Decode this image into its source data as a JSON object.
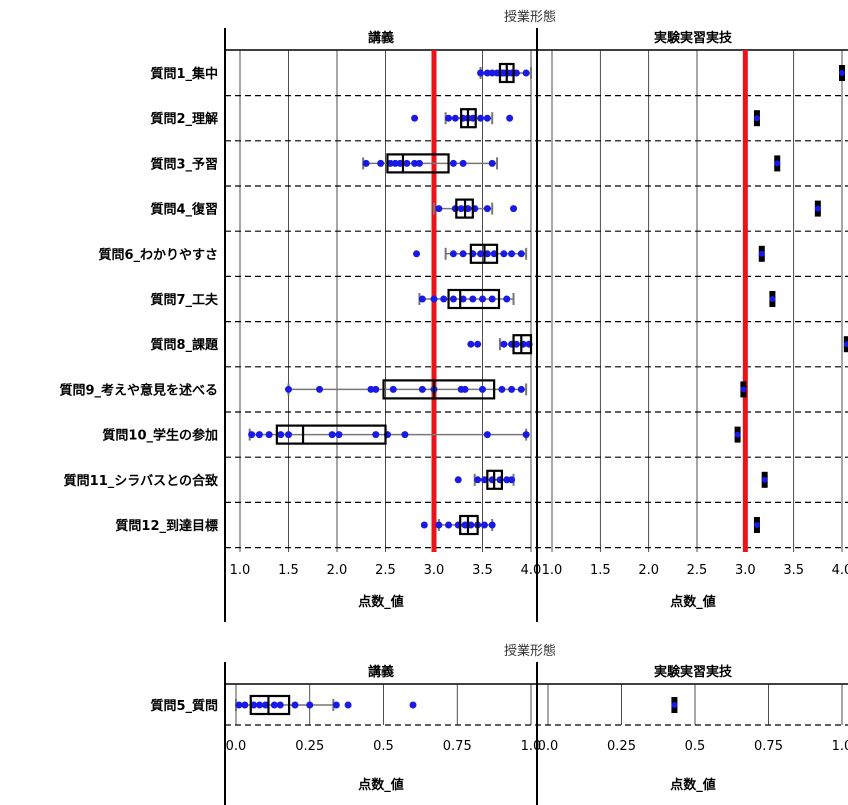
{
  "chart_data": [
    {
      "type": "boxplot",
      "title": "授業形態",
      "facets": [
        "講義",
        "実験実習実技"
      ],
      "xlabel": "点数_値",
      "xlim": [
        1.0,
        4.0
      ],
      "xticks": [
        "1.0",
        "1.5",
        "2.0",
        "2.5",
        "3.0",
        "3.5",
        "4.0"
      ],
      "reference_line": 3.0,
      "reference_color": "#e8141b",
      "point_color": "#1a1ae6",
      "rows": [
        {
          "label": "質問1_集中",
          "lecture": {
            "whisker_low": 3.48,
            "q1": 3.68,
            "median": 3.75,
            "q3": 3.82,
            "whisker_high": 4.0,
            "points": [
              3.48,
              3.55,
              3.6,
              3.65,
              3.7,
              3.72,
              3.76,
              3.8,
              3.85,
              3.95
            ]
          },
          "practical": {
            "value": 4.0
          }
        },
        {
          "label": "質問2_理解",
          "lecture": {
            "whisker_low": 3.12,
            "q1": 3.28,
            "median": 3.35,
            "q3": 3.43,
            "whisker_high": 3.6,
            "points": [
              2.8,
              3.15,
              3.22,
              3.3,
              3.35,
              3.4,
              3.48,
              3.55,
              3.78
            ]
          },
          "practical": {
            "value": 3.12
          }
        },
        {
          "label": "質問3_予習",
          "lecture": {
            "whisker_low": 2.27,
            "q1": 2.52,
            "median": 2.68,
            "q3": 3.15,
            "whisker_high": 3.65,
            "points": [
              2.3,
              2.45,
              2.55,
              2.6,
              2.65,
              2.72,
              2.8,
              2.85,
              3.2,
              3.3,
              3.6
            ]
          },
          "practical": {
            "value": 3.33
          }
        },
        {
          "label": "質問4_復習",
          "lecture": {
            "whisker_low": 3.0,
            "q1": 3.23,
            "median": 3.32,
            "q3": 3.4,
            "whisker_high": 3.6,
            "points": [
              3.05,
              3.22,
              3.28,
              3.35,
              3.42,
              3.55,
              3.82
            ]
          },
          "practical": {
            "value": 3.75
          }
        },
        {
          "label": "質問6_わかりやすさ",
          "lecture": {
            "whisker_low": 3.12,
            "q1": 3.38,
            "median": 3.52,
            "q3": 3.65,
            "whisker_high": 3.95,
            "points": [
              2.82,
              3.2,
              3.3,
              3.4,
              3.48,
              3.55,
              3.62,
              3.72,
              3.8,
              3.9
            ]
          },
          "practical": {
            "value": 3.17
          }
        },
        {
          "label": "質問7_工夫",
          "lecture": {
            "whisker_low": 2.85,
            "q1": 3.15,
            "median": 3.27,
            "q3": 3.67,
            "whisker_high": 3.82,
            "points": [
              2.88,
              3.0,
              3.1,
              3.2,
              3.3,
              3.4,
              3.5,
              3.6,
              3.75
            ]
          },
          "practical": {
            "value": 3.28
          }
        },
        {
          "label": "質問8_課題",
          "lecture": {
            "whisker_low": 3.68,
            "q1": 3.82,
            "median": 3.9,
            "q3": 4.0,
            "whisker_high": 4.0,
            "points": [
              3.38,
              3.45,
              3.72,
              3.8,
              3.85,
              3.92,
              3.98
            ]
          },
          "practical": {
            "value": 4.05
          }
        },
        {
          "label": "質問9_考えや意見を述べる",
          "lecture": {
            "whisker_low": 1.5,
            "q1": 2.48,
            "median": 3.0,
            "q3": 3.62,
            "whisker_high": 3.95,
            "points": [
              1.5,
              1.82,
              2.35,
              2.4,
              2.58,
              2.88,
              3.0,
              3.28,
              3.32,
              3.5,
              3.7,
              3.8,
              3.9
            ]
          },
          "practical": {
            "value": 2.98
          }
        },
        {
          "label": "質問10_学生の参加",
          "lecture": {
            "whisker_low": 1.1,
            "q1": 1.38,
            "median": 1.65,
            "q3": 2.5,
            "whisker_high": 3.95,
            "points": [
              1.12,
              1.2,
              1.3,
              1.42,
              1.5,
              1.95,
              2.02,
              2.4,
              2.52,
              2.7,
              3.55,
              3.95
            ]
          },
          "practical": {
            "value": 2.92
          }
        },
        {
          "label": "質問11_シラバスとの合致",
          "lecture": {
            "whisker_low": 3.42,
            "q1": 3.55,
            "median": 3.62,
            "q3": 3.7,
            "whisker_high": 3.82,
            "points": [
              3.25,
              3.45,
              3.52,
              3.6,
              3.68,
              3.75,
              3.8
            ]
          },
          "practical": {
            "value": 3.2
          }
        },
        {
          "label": "質問12_到達目標",
          "lecture": {
            "whisker_low": 3.05,
            "q1": 3.27,
            "median": 3.35,
            "q3": 3.45,
            "whisker_high": 3.6,
            "points": [
              2.9,
              3.05,
              3.15,
              3.25,
              3.32,
              3.38,
              3.45,
              3.52,
              3.6
            ]
          },
          "practical": {
            "value": 3.12
          }
        }
      ]
    },
    {
      "type": "boxplot",
      "title": "授業形態",
      "facets": [
        "講義",
        "実験実習実技"
      ],
      "xlabel": "点数_値",
      "xlim": [
        0.0,
        1.0
      ],
      "xticks": [
        "0.0",
        "0.25",
        "0.5",
        "0.75",
        "1.0"
      ],
      "rows": [
        {
          "label": "質問5_質問",
          "lecture": {
            "whisker_low": 0.0,
            "q1": 0.05,
            "median": 0.11,
            "q3": 0.18,
            "whisker_high": 0.33,
            "points": [
              0.01,
              0.03,
              0.06,
              0.08,
              0.1,
              0.13,
              0.15,
              0.2,
              0.25,
              0.34,
              0.38,
              0.6
            ]
          },
          "practical": {
            "value": 0.43
          }
        }
      ]
    }
  ]
}
